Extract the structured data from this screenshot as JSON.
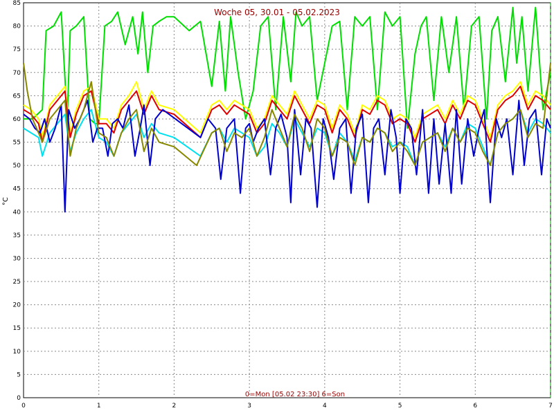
{
  "chart_data": {
    "type": "line",
    "title": "Woche 05, 30.01 - 05.02.2023",
    "xlabel": "0=Mon [05.02 23:30] 6=Son",
    "ylabel": "°C",
    "xlim": [
      0,
      7
    ],
    "ylim": [
      0,
      85
    ],
    "x_ticks": [
      0,
      1,
      2,
      3,
      4,
      5,
      6,
      7
    ],
    "y_ticks": [
      0,
      5,
      10,
      15,
      20,
      25,
      30,
      35,
      40,
      45,
      50,
      55,
      60,
      65,
      70,
      75,
      80,
      85
    ],
    "grid": true,
    "series": [
      {
        "color": "#00dd00",
        "x": [
          0.0,
          0.12,
          0.25,
          0.3,
          0.4,
          0.5,
          0.58,
          0.62,
          0.7,
          0.8,
          0.88,
          0.95,
          1.0,
          1.08,
          1.17,
          1.25,
          1.35,
          1.45,
          1.52,
          1.58,
          1.65,
          1.72,
          1.8,
          1.9,
          2.0,
          2.2,
          2.35,
          2.5,
          2.6,
          2.68,
          2.75,
          2.85,
          2.95,
          3.05,
          3.15,
          3.25,
          3.35,
          3.45,
          3.55,
          3.62,
          3.7,
          3.8,
          3.9,
          4.0,
          4.1,
          4.2,
          4.3,
          4.4,
          4.5,
          4.6,
          4.7,
          4.8,
          4.9,
          5.0,
          5.1,
          5.2,
          5.28,
          5.35,
          5.45,
          5.55,
          5.65,
          5.75,
          5.85,
          5.95,
          6.05,
          6.15,
          6.22,
          6.3,
          6.4,
          6.5,
          6.55,
          6.62,
          6.7,
          6.8,
          6.9,
          7.0
        ],
        "y": [
          60,
          60,
          62,
          79,
          80,
          83,
          60,
          79,
          80,
          82,
          60,
          59,
          59,
          80,
          81,
          83,
          76,
          82,
          74,
          83,
          70,
          80,
          81,
          82,
          82,
          79,
          81,
          67,
          81,
          66,
          82,
          70,
          60,
          66,
          80,
          82,
          62,
          82,
          68,
          83,
          80,
          82,
          64,
          72,
          80,
          81,
          62,
          82,
          80,
          82,
          62,
          83,
          80,
          82,
          58,
          74,
          80,
          82,
          64,
          82,
          70,
          82,
          62,
          80,
          82,
          60,
          79,
          82,
          68,
          84,
          72,
          82,
          66,
          84,
          62,
          70
        ]
      },
      {
        "color": "#ffff00",
        "x": [
          0.0,
          0.1,
          0.2,
          0.25,
          0.35,
          0.45,
          0.55,
          0.62,
          0.7,
          0.8,
          0.9,
          1.0,
          1.1,
          1.2,
          1.3,
          1.4,
          1.5,
          1.6,
          1.7,
          1.8,
          2.0,
          2.35,
          2.5,
          2.6,
          2.7,
          2.8,
          2.9,
          3.0,
          3.1,
          3.2,
          3.3,
          3.4,
          3.5,
          3.6,
          3.7,
          3.8,
          3.9,
          4.0,
          4.1,
          4.2,
          4.3,
          4.4,
          4.5,
          4.6,
          4.7,
          4.8,
          4.9,
          5.0,
          5.1,
          5.2,
          5.3,
          5.4,
          5.5,
          5.6,
          5.7,
          5.8,
          5.9,
          6.0,
          6.1,
          6.2,
          6.3,
          6.4,
          6.5,
          6.6,
          6.7,
          6.8,
          6.9,
          7.0
        ],
        "y": [
          63,
          62,
          60,
          56,
          63,
          65,
          67,
          57,
          62,
          66,
          67,
          60,
          60,
          58,
          63,
          65,
          68,
          62,
          66,
          63,
          62,
          57,
          63,
          64,
          62,
          64,
          63,
          62,
          58,
          60,
          65,
          63,
          61,
          66,
          63,
          60,
          64,
          63,
          58,
          63,
          61,
          57,
          63,
          62,
          65,
          64,
          60,
          61,
          60,
          56,
          61,
          62,
          63,
          60,
          64,
          61,
          65,
          64,
          60,
          56,
          63,
          65,
          66,
          68,
          63,
          66,
          65,
          63
        ]
      },
      {
        "color": "#dd0000",
        "x": [
          0.0,
          0.1,
          0.2,
          0.25,
          0.35,
          0.45,
          0.55,
          0.62,
          0.7,
          0.8,
          0.9,
          1.0,
          1.1,
          1.2,
          1.3,
          1.4,
          1.5,
          1.6,
          1.7,
          1.8,
          2.0,
          2.35,
          2.5,
          2.6,
          2.7,
          2.8,
          2.9,
          3.0,
          3.1,
          3.2,
          3.3,
          3.4,
          3.5,
          3.6,
          3.7,
          3.8,
          3.9,
          4.0,
          4.1,
          4.2,
          4.3,
          4.4,
          4.5,
          4.6,
          4.7,
          4.8,
          4.9,
          5.0,
          5.1,
          5.2,
          5.3,
          5.4,
          5.5,
          5.6,
          5.7,
          5.8,
          5.9,
          6.0,
          6.1,
          6.2,
          6.3,
          6.4,
          6.5,
          6.6,
          6.7,
          6.8,
          6.9,
          7.0
        ],
        "y": [
          62,
          61,
          59,
          55,
          62,
          64,
          66,
          56,
          61,
          65,
          66,
          59,
          59,
          57,
          62,
          64,
          66,
          61,
          65,
          62,
          61,
          56,
          62,
          63,
          61,
          63,
          62,
          61,
          57,
          59,
          64,
          62,
          60,
          65,
          62,
          59,
          63,
          62,
          57,
          62,
          60,
          56,
          62,
          61,
          64,
          63,
          59,
          60,
          59,
          55,
          60,
          61,
          62,
          59,
          63,
          60,
          64,
          63,
          59,
          55,
          62,
          64,
          65,
          67,
          62,
          65,
          64,
          62
        ]
      },
      {
        "color": "#00e0ee",
        "x": [
          0.0,
          0.1,
          0.2,
          0.25,
          0.35,
          0.45,
          0.55,
          0.62,
          0.7,
          0.8,
          0.9,
          1.0,
          1.1,
          1.2,
          1.3,
          1.4,
          1.5,
          1.6,
          1.7,
          1.8,
          2.0,
          2.35,
          2.5,
          2.6,
          2.7,
          2.8,
          2.9,
          3.0,
          3.1,
          3.2,
          3.3,
          3.4,
          3.5,
          3.6,
          3.7,
          3.8,
          3.9,
          4.0,
          4.1,
          4.2,
          4.3,
          4.4,
          4.5,
          4.6,
          4.7,
          4.8,
          4.9,
          5.0,
          5.1,
          5.2,
          5.3,
          5.4,
          5.5,
          5.6,
          5.7,
          5.8,
          5.9,
          6.0,
          6.1,
          6.2,
          6.3,
          6.4,
          6.5,
          6.6,
          6.7,
          6.8,
          6.9,
          7.0
        ],
        "y": [
          58,
          57,
          56,
          52,
          57,
          59,
          61,
          53,
          57,
          60,
          62,
          56,
          55,
          52,
          57,
          59,
          61,
          56,
          59,
          57,
          56,
          52,
          57,
          58,
          55,
          58,
          57,
          56,
          52,
          54,
          59,
          57,
          54,
          60,
          57,
          54,
          58,
          57,
          52,
          57,
          55,
          51,
          56,
          55,
          58,
          57,
          54,
          55,
          54,
          50,
          55,
          56,
          57,
          54,
          58,
          55,
          59,
          58,
          54,
          50,
          57,
          59,
          60,
          62,
          57,
          60,
          59,
          57
        ]
      },
      {
        "color": "#0000cc",
        "x": [
          0.0,
          0.08,
          0.15,
          0.22,
          0.28,
          0.35,
          0.42,
          0.5,
          0.55,
          0.6,
          0.68,
          0.75,
          0.85,
          0.92,
          0.98,
          1.05,
          1.12,
          1.18,
          1.25,
          1.32,
          1.4,
          1.48,
          1.55,
          1.6,
          1.68,
          1.75,
          1.85,
          2.35,
          2.45,
          2.55,
          2.62,
          2.7,
          2.8,
          2.88,
          2.95,
          3.0,
          3.05,
          3.12,
          3.2,
          3.28,
          3.35,
          3.42,
          3.5,
          3.55,
          3.6,
          3.68,
          3.75,
          3.82,
          3.9,
          3.98,
          4.05,
          4.12,
          4.2,
          4.28,
          4.35,
          4.42,
          4.5,
          4.58,
          4.65,
          4.72,
          4.8,
          4.88,
          4.95,
          5.0,
          5.08,
          5.15,
          5.22,
          5.3,
          5.38,
          5.45,
          5.52,
          5.6,
          5.68,
          5.75,
          5.82,
          5.9,
          5.98,
          6.05,
          6.12,
          6.2,
          6.28,
          6.35,
          6.42,
          6.5,
          6.58,
          6.65,
          6.72,
          6.8,
          6.88,
          6.95,
          7.0
        ],
        "y": [
          61,
          60,
          58,
          57,
          60,
          55,
          58,
          63,
          40,
          62,
          58,
          60,
          64,
          55,
          58,
          58,
          52,
          59,
          60,
          58,
          63,
          52,
          58,
          63,
          50,
          60,
          62,
          56,
          60,
          58,
          47,
          58,
          60,
          44,
          58,
          59,
          55,
          58,
          60,
          48,
          58,
          61,
          56,
          42,
          62,
          48,
          60,
          58,
          41,
          60,
          56,
          47,
          58,
          60,
          44,
          58,
          61,
          42,
          58,
          60,
          48,
          62,
          56,
          44,
          60,
          58,
          48,
          62,
          44,
          60,
          46,
          59,
          44,
          62,
          46,
          60,
          52,
          58,
          62,
          42,
          60,
          56,
          60,
          48,
          64,
          50,
          60,
          62,
          48,
          60,
          58
        ]
      },
      {
        "color": "#888800",
        "x": [
          0.0,
          0.05,
          0.12,
          0.2,
          0.25,
          0.35,
          0.45,
          0.55,
          0.62,
          0.7,
          0.8,
          0.9,
          1.0,
          1.1,
          1.2,
          1.3,
          1.4,
          1.5,
          1.6,
          1.7,
          1.8,
          2.0,
          2.3,
          2.5,
          2.6,
          2.7,
          2.8,
          2.9,
          3.0,
          3.1,
          3.2,
          3.3,
          3.4,
          3.5,
          3.6,
          3.7,
          3.8,
          3.9,
          4.0,
          4.1,
          4.2,
          4.3,
          4.4,
          4.5,
          4.6,
          4.7,
          4.8,
          4.9,
          5.0,
          5.1,
          5.2,
          5.3,
          5.4,
          5.5,
          5.6,
          5.7,
          5.8,
          5.9,
          6.0,
          6.1,
          6.2,
          6.3,
          6.4,
          6.5,
          6.6,
          6.7,
          6.8,
          6.9,
          7.0
        ],
        "y": [
          72,
          66,
          60,
          57,
          55,
          60,
          62,
          64,
          52,
          58,
          62,
          68,
          57,
          56,
          52,
          57,
          60,
          62,
          53,
          58,
          55,
          54,
          50,
          57,
          58,
          53,
          57,
          56,
          58,
          52,
          56,
          62,
          58,
          54,
          61,
          58,
          53,
          60,
          58,
          52,
          56,
          55,
          50,
          56,
          55,
          58,
          57,
          53,
          55,
          53,
          50,
          55,
          56,
          57,
          53,
          58,
          55,
          58,
          57,
          53,
          50,
          57,
          59,
          60,
          62,
          56,
          59,
          58,
          72
        ]
      },
      {
        "color": "#7a0000",
        "x": [
          0.0,
          0.05,
          0.1,
          0.15,
          0.22,
          0.27,
          0.32,
          0.4,
          0.45,
          0.5,
          0.55,
          0.6,
          0.7,
          0.8,
          0.88,
          0.92,
          0.95,
          1.2,
          1.25,
          1.3,
          1.4,
          1.5,
          1.6,
          1.7,
          1.8,
          2.0,
          2.35,
          2.45,
          2.55,
          2.65,
          2.75,
          2.85,
          2.95,
          3.25,
          3.3,
          3.35,
          3.45,
          3.55,
          3.65,
          3.75,
          3.85,
          3.95,
          4.22,
          4.28,
          4.35,
          4.45,
          4.55,
          4.65,
          4.75,
          4.85,
          4.95,
          5.25,
          5.32,
          5.4,
          5.5,
          5.6,
          5.7,
          5.8,
          5.9,
          6.0,
          6.22,
          6.3,
          6.4,
          6.5,
          6.6,
          6.7,
          6.8,
          6.9,
          7.0
        ]
      },
      {
        "color": "#006666",
        "x": [
          0.0
        ],
        "y": [
          0
        ]
      }
    ]
  }
}
